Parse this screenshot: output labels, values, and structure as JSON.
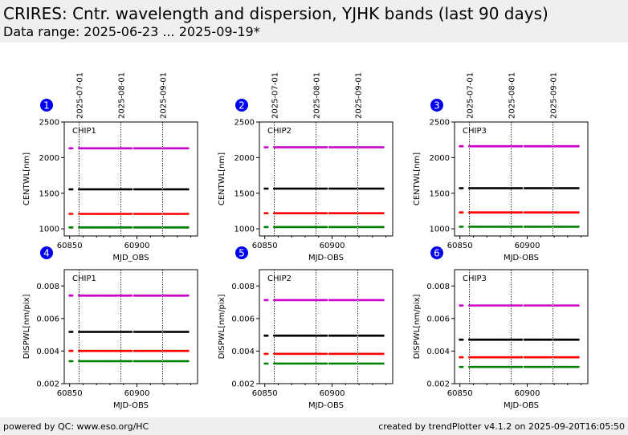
{
  "header": {
    "title": "CRIRES: Cntr. wavelength and dispersion, YJHK bands (last 90 days)",
    "subtitle": "Data range: 2025-06-23 ... 2025-09-19*",
    "background": "#efefef"
  },
  "footer": {
    "left": "powered by QC: www.eso.org/HC",
    "right": "created by trendPlotter v4.1.2 on 2025-09-20T16:05:50"
  },
  "colors": {
    "badge": "#0000ee",
    "series_magenta": "#cc00cc",
    "series_black": "#000000",
    "series_red": "#ff0000",
    "series_green": "#008000"
  },
  "date_markers": [
    {
      "label": "2025-07-01",
      "mjd": 60857
    },
    {
      "label": "2025-08-01",
      "mjd": 60888
    },
    {
      "label": "2025-09-01",
      "mjd": 60919
    }
  ],
  "observations": {
    "mjd_start": 60850,
    "mjd_end": 60938,
    "gaps": [
      [
        60852,
        60857
      ],
      [
        60896,
        60898
      ],
      [
        60918,
        60920
      ]
    ]
  },
  "chart_data": [
    {
      "type": "scatter",
      "badge": "1",
      "chip_label": "CHIP1",
      "xlabel": "MJD_OBS",
      "ylabel": "CENTWL[nm]",
      "xlim": [
        60846,
        60945
      ],
      "ylim": [
        900,
        2500
      ],
      "xticks": [
        60850,
        60900
      ],
      "yticks": [
        1000,
        1500,
        2000,
        2500
      ],
      "series": [
        {
          "color": "#cc00cc",
          "y": 2130
        },
        {
          "color": "#000000",
          "y": 1555
        },
        {
          "color": "#ff0000",
          "y": 1210
        },
        {
          "color": "#008000",
          "y": 1020
        }
      ]
    },
    {
      "type": "scatter",
      "badge": "2",
      "chip_label": "CHIP2",
      "xlabel": "MJD-OBS",
      "ylabel": "CENTWL[nm]",
      "xlim": [
        60846,
        60945
      ],
      "ylim": [
        900,
        2500
      ],
      "xticks": [
        60850,
        60900
      ],
      "yticks": [
        1000,
        1500,
        2000,
        2500
      ],
      "series": [
        {
          "color": "#cc00cc",
          "y": 2145
        },
        {
          "color": "#000000",
          "y": 1565
        },
        {
          "color": "#ff0000",
          "y": 1220
        },
        {
          "color": "#008000",
          "y": 1025
        }
      ]
    },
    {
      "type": "scatter",
      "badge": "3",
      "chip_label": "CHIP3",
      "xlabel": "MJD-OBS",
      "ylabel": "CENTWL[nm]",
      "xlim": [
        60846,
        60945
      ],
      "ylim": [
        900,
        2500
      ],
      "xticks": [
        60850,
        60900
      ],
      "yticks": [
        1000,
        1500,
        2000,
        2500
      ],
      "series": [
        {
          "color": "#cc00cc",
          "y": 2160
        },
        {
          "color": "#000000",
          "y": 1570
        },
        {
          "color": "#ff0000",
          "y": 1230
        },
        {
          "color": "#008000",
          "y": 1030
        }
      ]
    },
    {
      "type": "scatter",
      "badge": "4",
      "chip_label": "CHIP1",
      "xlabel": "MJD-OBS",
      "ylabel": "DISPWL[nm/pix]",
      "xlim": [
        60846,
        60945
      ],
      "ylim": [
        0.002,
        0.009
      ],
      "xticks": [
        60850,
        60900
      ],
      "yticks": [
        0.002,
        0.004,
        0.006,
        0.008
      ],
      "series": [
        {
          "color": "#cc00cc",
          "y": 0.00741
        },
        {
          "color": "#000000",
          "y": 0.00518
        },
        {
          "color": "#ff0000",
          "y": 0.00401
        },
        {
          "color": "#008000",
          "y": 0.00338
        }
      ]
    },
    {
      "type": "scatter",
      "badge": "5",
      "chip_label": "CHIP2",
      "xlabel": "MJD-OBS",
      "ylabel": "DISPWL[nm/pix]",
      "xlim": [
        60846,
        60945
      ],
      "ylim": [
        0.002,
        0.009
      ],
      "xticks": [
        60850,
        60900
      ],
      "yticks": [
        0.002,
        0.004,
        0.006,
        0.008
      ],
      "series": [
        {
          "color": "#cc00cc",
          "y": 0.00713
        },
        {
          "color": "#000000",
          "y": 0.00495
        },
        {
          "color": "#ff0000",
          "y": 0.00383
        },
        {
          "color": "#008000",
          "y": 0.00323
        }
      ]
    },
    {
      "type": "scatter",
      "badge": "6",
      "chip_label": "CHIP3",
      "xlabel": "MJD-OBS",
      "ylabel": "DISPWL[nm/pix]",
      "xlim": [
        60846,
        60945
      ],
      "ylim": [
        0.002,
        0.009
      ],
      "xticks": [
        60850,
        60900
      ],
      "yticks": [
        0.002,
        0.004,
        0.006,
        0.008
      ],
      "series": [
        {
          "color": "#cc00cc",
          "y": 0.0068
        },
        {
          "color": "#000000",
          "y": 0.0047
        },
        {
          "color": "#ff0000",
          "y": 0.00362
        },
        {
          "color": "#008000",
          "y": 0.00303
        }
      ]
    }
  ]
}
